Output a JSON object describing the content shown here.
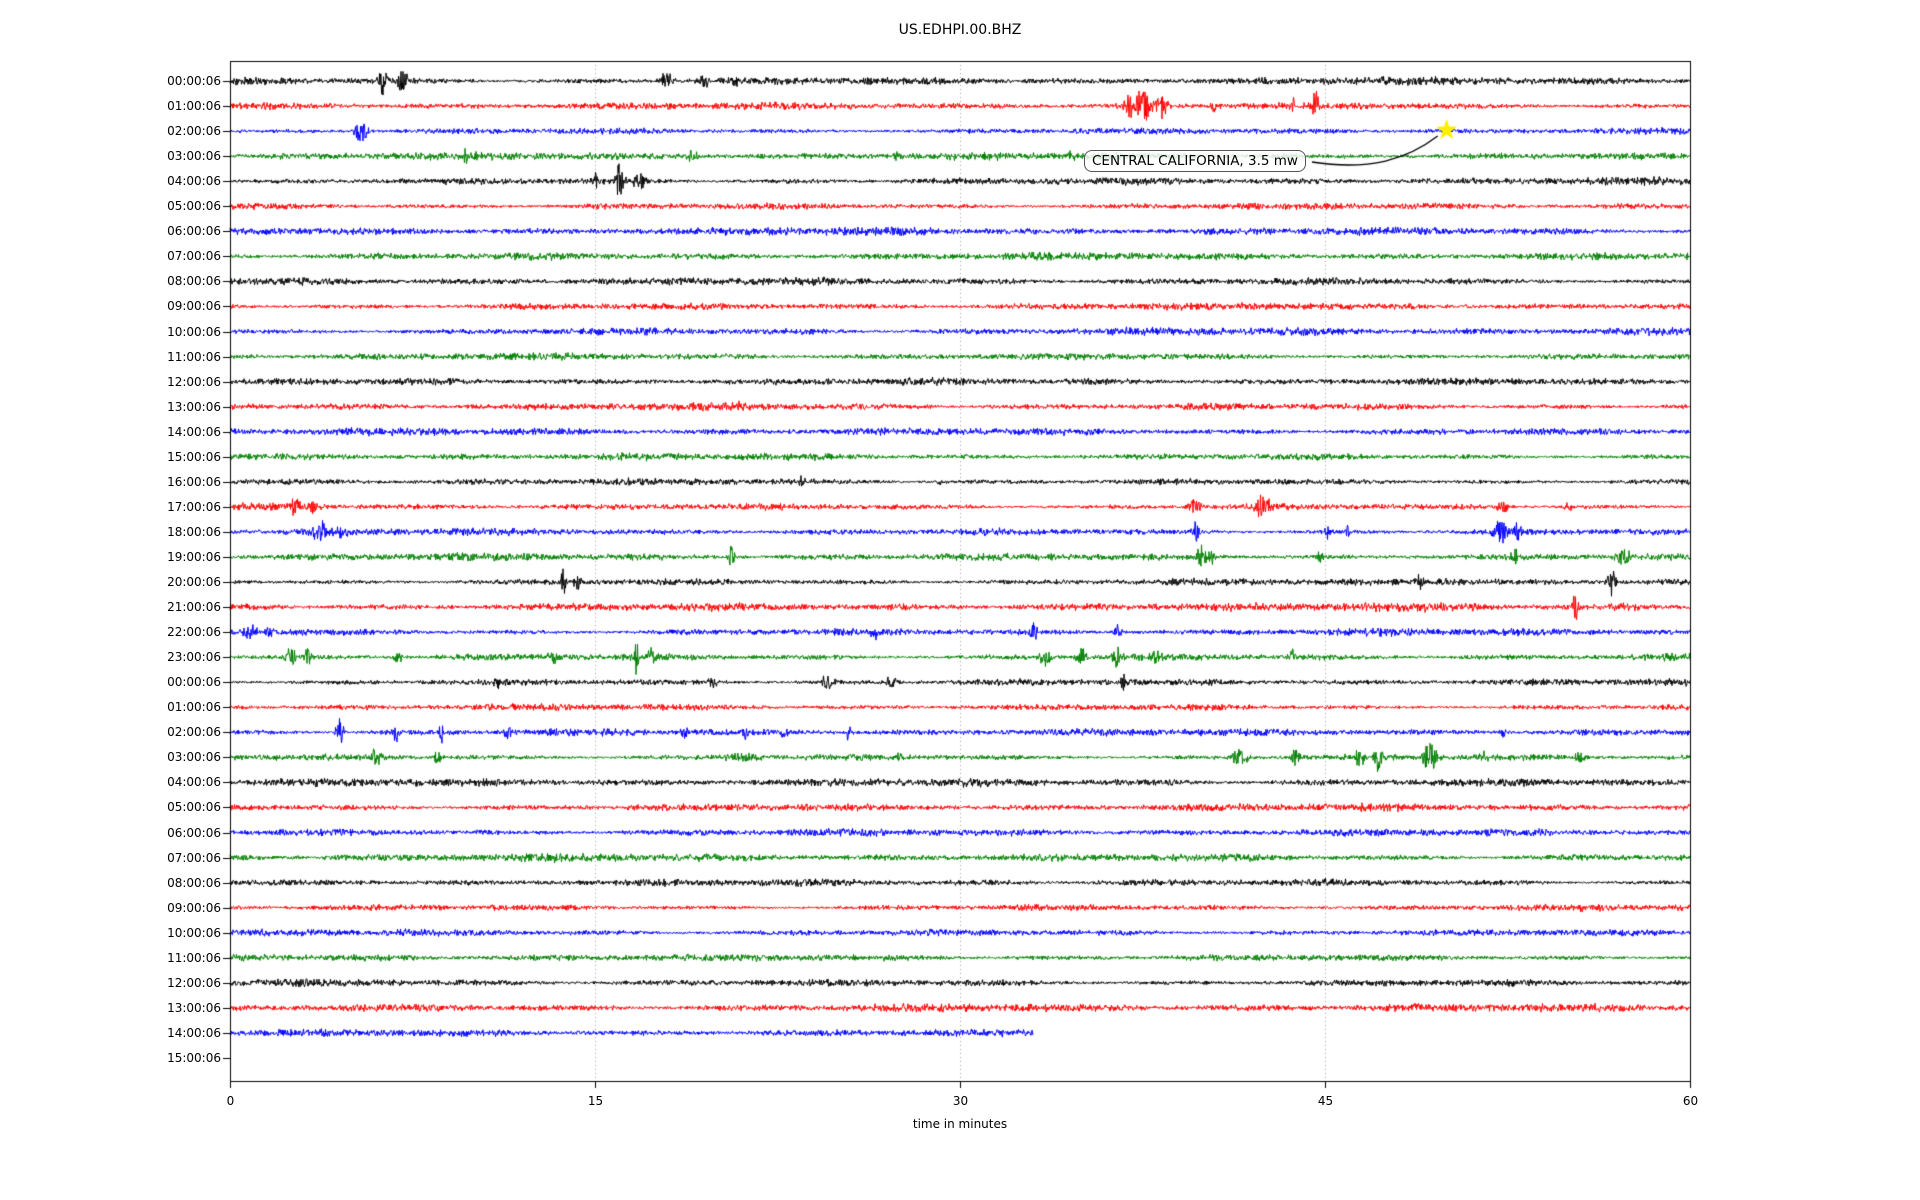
{
  "title": "US.EDHPI.00.BHZ",
  "axes": {
    "xlabel": "time in minutes"
  },
  "chart_data": {
    "type": "line",
    "title": "US.EDHPI.00.BHZ",
    "xlabel": "time in minutes",
    "x_range_minutes": [
      0,
      60
    ],
    "x_ticks": [
      0,
      15,
      30,
      45,
      60
    ],
    "x_gridlines": [
      15,
      30,
      45
    ],
    "grid_color": "#a0a0a0",
    "background": "#ffffff",
    "color_cycle": [
      "#000000",
      "#ff0000",
      "#0000ff",
      "#008000"
    ],
    "annotation": {
      "text": "CENTRAL CALIFORNIA, 3.5 mw",
      "row_label": "02:00:06",
      "minute": 50,
      "marker": "star",
      "marker_color": "#ffee00"
    },
    "rows": [
      {
        "label": "00:00:06",
        "color": "#000000",
        "end": 60,
        "events": [
          [
            6.3,
            16,
            0.3
          ],
          [
            7.1,
            12,
            0.4
          ],
          [
            17.9,
            9,
            0.5
          ],
          [
            19.5,
            7,
            0.3
          ],
          [
            20.8,
            11,
            0.15
          ]
        ]
      },
      {
        "label": "01:00:06",
        "color": "#ff0000",
        "end": 60,
        "events": [
          [
            36.9,
            10,
            0.4
          ],
          [
            37.5,
            15,
            0.8
          ],
          [
            38.3,
            10,
            0.4
          ],
          [
            40.4,
            8,
            0.2
          ],
          [
            43.7,
            7,
            0.2
          ],
          [
            44.6,
            17,
            0.25
          ]
        ]
      },
      {
        "label": "02:00:06",
        "color": "#0000ff",
        "end": 60,
        "events": [
          [
            5.4,
            11,
            0.5
          ],
          [
            50.0,
            4,
            0.3
          ]
        ]
      },
      {
        "label": "03:00:06",
        "color": "#008000",
        "end": 60,
        "events": [
          [
            9.7,
            14,
            0.15
          ],
          [
            19.0,
            5,
            0.4
          ],
          [
            27.5,
            4,
            0.5
          ],
          [
            34.5,
            5,
            0.4
          ],
          [
            36.5,
            4,
            0.8
          ]
        ]
      },
      {
        "label": "04:00:06",
        "color": "#000000",
        "end": 60,
        "events": [
          [
            15.0,
            8,
            0.3
          ],
          [
            16.0,
            17,
            0.3
          ],
          [
            16.8,
            10,
            0.5
          ]
        ]
      },
      {
        "label": "05:00:06",
        "color": "#ff0000",
        "end": 60,
        "events": []
      },
      {
        "label": "06:00:06",
        "color": "#0000ff",
        "end": 60,
        "events": []
      },
      {
        "label": "07:00:06",
        "color": "#008000",
        "end": 60,
        "events": []
      },
      {
        "label": "08:00:06",
        "color": "#000000",
        "end": 60,
        "events": []
      },
      {
        "label": "09:00:06",
        "color": "#ff0000",
        "end": 60,
        "events": []
      },
      {
        "label": "10:00:06",
        "color": "#0000ff",
        "end": 60,
        "events": []
      },
      {
        "label": "11:00:06",
        "color": "#008000",
        "end": 60,
        "events": []
      },
      {
        "label": "12:00:06",
        "color": "#000000",
        "end": 60,
        "events": []
      },
      {
        "label": "13:00:06",
        "color": "#ff0000",
        "end": 60,
        "events": [
          [
            20.9,
            4,
            0.3
          ]
        ]
      },
      {
        "label": "14:00:06",
        "color": "#0000ff",
        "end": 60,
        "events": []
      },
      {
        "label": "15:00:06",
        "color": "#008000",
        "end": 60,
        "events": []
      },
      {
        "label": "16:00:06",
        "color": "#000000",
        "end": 60,
        "events": [
          [
            23.5,
            5,
            0.3
          ],
          [
            29.1,
            4,
            0.2
          ]
        ]
      },
      {
        "label": "17:00:06",
        "color": "#ff0000",
        "end": 60,
        "events": [
          [
            2.7,
            11,
            0.5
          ],
          [
            3.4,
            7,
            0.3
          ],
          [
            39.6,
            8,
            0.5
          ],
          [
            42.4,
            10,
            0.7
          ],
          [
            52.3,
            8,
            0.4
          ],
          [
            55.0,
            6,
            0.3
          ]
        ]
      },
      {
        "label": "18:00:06",
        "color": "#0000ff",
        "end": 60,
        "events": [
          [
            3.7,
            9,
            0.7
          ],
          [
            4.6,
            7,
            0.4
          ],
          [
            39.7,
            10,
            0.25
          ],
          [
            45.1,
            8,
            0.25
          ],
          [
            45.9,
            10,
            0.15
          ],
          [
            52.2,
            14,
            0.5
          ],
          [
            52.9,
            11,
            0.3
          ]
        ]
      },
      {
        "label": "19:00:06",
        "color": "#008000",
        "end": 60,
        "events": [
          [
            20.6,
            12,
            0.25
          ],
          [
            39.9,
            14,
            0.35
          ],
          [
            40.3,
            10,
            0.25
          ],
          [
            44.8,
            7,
            0.25
          ],
          [
            52.8,
            10,
            0.3
          ],
          [
            57.3,
            10,
            0.5
          ]
        ]
      },
      {
        "label": "20:00:06",
        "color": "#000000",
        "end": 60,
        "events": [
          [
            13.7,
            16,
            0.15
          ],
          [
            14.3,
            8,
            0.3
          ],
          [
            48.9,
            9,
            0.2
          ],
          [
            50.0,
            2.5,
            6
          ],
          [
            56.8,
            13,
            0.35
          ]
        ]
      },
      {
        "label": "21:00:06",
        "color": "#ff0000",
        "end": 60,
        "events": [
          [
            49.5,
            3,
            7
          ],
          [
            55.3,
            17,
            0.2
          ],
          [
            57.5,
            3,
            2
          ]
        ]
      },
      {
        "label": "22:00:06",
        "color": "#0000ff",
        "end": 60,
        "events": [
          [
            0.8,
            10,
            0.5
          ],
          [
            1.6,
            6,
            0.3
          ],
          [
            26.5,
            6,
            0.3
          ],
          [
            33.0,
            8,
            0.35
          ],
          [
            36.5,
            8,
            0.3
          ]
        ]
      },
      {
        "label": "23:00:06",
        "color": "#008000",
        "end": 60,
        "events": [
          [
            2.5,
            9,
            0.4
          ],
          [
            3.2,
            11,
            0.2
          ],
          [
            6.9,
            7,
            0.3
          ],
          [
            13.3,
            8,
            0.4
          ],
          [
            16.7,
            18,
            0.15
          ],
          [
            17.3,
            9,
            0.3
          ],
          [
            33.5,
            8,
            0.5
          ],
          [
            35.0,
            9,
            0.4
          ],
          [
            36.5,
            11,
            0.4
          ],
          [
            38.0,
            7,
            0.4
          ],
          [
            43.7,
            8,
            0.3
          ]
        ]
      },
      {
        "label": "00:00:06",
        "color": "#000000",
        "end": 60,
        "events": [
          [
            11.0,
            6,
            0.3
          ],
          [
            19.8,
            6,
            0.4
          ],
          [
            24.6,
            8,
            0.5
          ],
          [
            27.2,
            6,
            0.4
          ],
          [
            36.7,
            14,
            0.15
          ]
        ]
      },
      {
        "label": "01:00:06",
        "color": "#ff0000",
        "end": 60,
        "events": []
      },
      {
        "label": "02:00:06",
        "color": "#0000ff",
        "end": 60,
        "events": [
          [
            4.5,
            15,
            0.3
          ],
          [
            6.8,
            9,
            0.25
          ],
          [
            8.7,
            10,
            0.2
          ],
          [
            11.4,
            6,
            0.3
          ],
          [
            18.7,
            6,
            0.3
          ],
          [
            21.2,
            8,
            0.25
          ],
          [
            22.8,
            6,
            0.25
          ],
          [
            25.4,
            8,
            0.25
          ],
          [
            52.3,
            5,
            0.3
          ]
        ]
      },
      {
        "label": "03:00:06",
        "color": "#008000",
        "end": 60,
        "events": [
          [
            6.0,
            8,
            0.4
          ],
          [
            8.5,
            8,
            0.3
          ],
          [
            21.0,
            4,
            1.5
          ],
          [
            27.5,
            5,
            0.3
          ],
          [
            41.5,
            8,
            0.6
          ],
          [
            43.8,
            10,
            0.3
          ],
          [
            46.4,
            8,
            0.4
          ],
          [
            47.2,
            13,
            0.3
          ],
          [
            49.3,
            16,
            0.5
          ],
          [
            51.5,
            6,
            0.4
          ],
          [
            55.5,
            5,
            0.5
          ]
        ]
      },
      {
        "label": "04:00:06",
        "color": "#000000",
        "end": 60,
        "events": []
      },
      {
        "label": "05:00:06",
        "color": "#ff0000",
        "end": 60,
        "events": []
      },
      {
        "label": "06:00:06",
        "color": "#0000ff",
        "end": 60,
        "events": []
      },
      {
        "label": "07:00:06",
        "color": "#008000",
        "end": 60,
        "events": []
      },
      {
        "label": "08:00:06",
        "color": "#000000",
        "end": 60,
        "events": []
      },
      {
        "label": "09:00:06",
        "color": "#ff0000",
        "end": 60,
        "events": []
      },
      {
        "label": "10:00:06",
        "color": "#0000ff",
        "end": 60,
        "events": []
      },
      {
        "label": "11:00:06",
        "color": "#008000",
        "end": 60,
        "events": []
      },
      {
        "label": "12:00:06",
        "color": "#000000",
        "end": 60,
        "events": []
      },
      {
        "label": "13:00:06",
        "color": "#ff0000",
        "end": 60,
        "events": []
      },
      {
        "label": "14:00:06",
        "color": "#0000ff",
        "end": 33,
        "events": []
      },
      {
        "label": "15:00:06",
        "color": "#008000",
        "end": 0,
        "events": []
      }
    ]
  }
}
